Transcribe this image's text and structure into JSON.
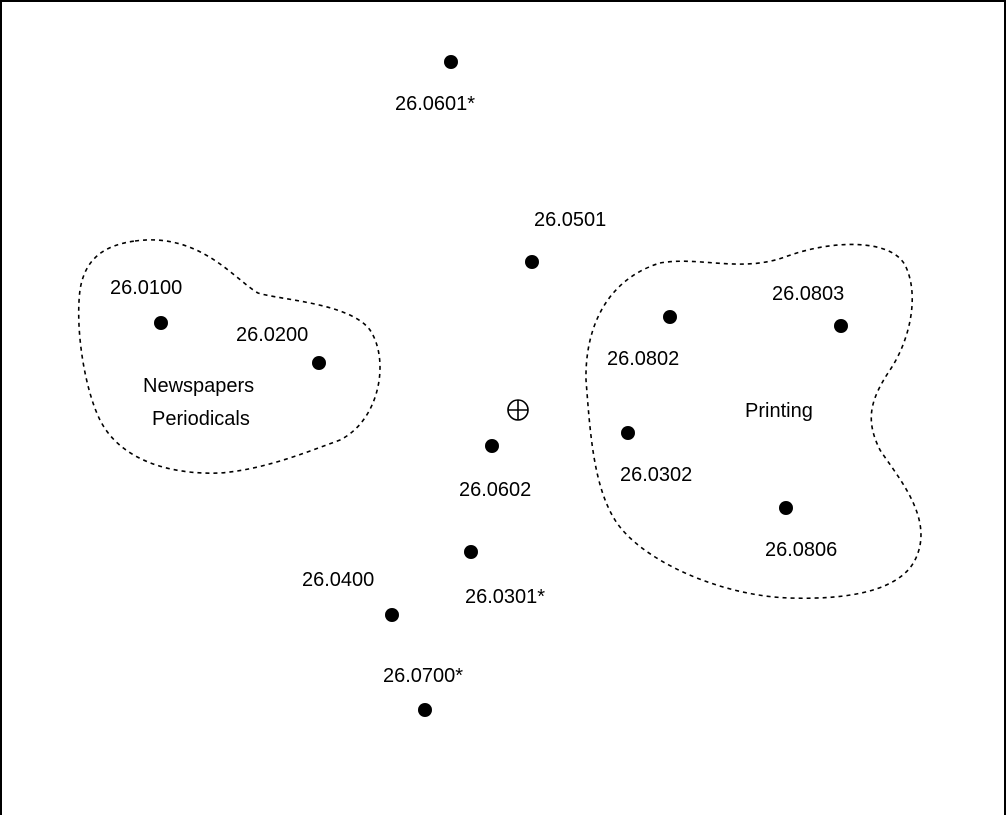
{
  "points": [
    {
      "id": "p1",
      "label": "26.0601*"
    },
    {
      "id": "p2",
      "label": "26.0501"
    },
    {
      "id": "p3",
      "label": "26.0100"
    },
    {
      "id": "p4",
      "label": "26.0200"
    },
    {
      "id": "p5",
      "label": "26.0802"
    },
    {
      "id": "p6",
      "label": "26.0803"
    },
    {
      "id": "p7",
      "label": "26.0302"
    },
    {
      "id": "p8",
      "label": "26.0806"
    },
    {
      "id": "p9",
      "label": "26.0602"
    },
    {
      "id": "p10",
      "label": "26.0301*"
    },
    {
      "id": "p11",
      "label": "26.0400"
    },
    {
      "id": "p12",
      "label": "26.0700*"
    }
  ],
  "clusters": [
    {
      "id": "newspapers",
      "label_lines": [
        "Newspapers",
        "Periodicals"
      ]
    },
    {
      "id": "printing",
      "label_lines": [
        "Printing"
      ]
    }
  ],
  "centroid_symbol": "⊕"
}
